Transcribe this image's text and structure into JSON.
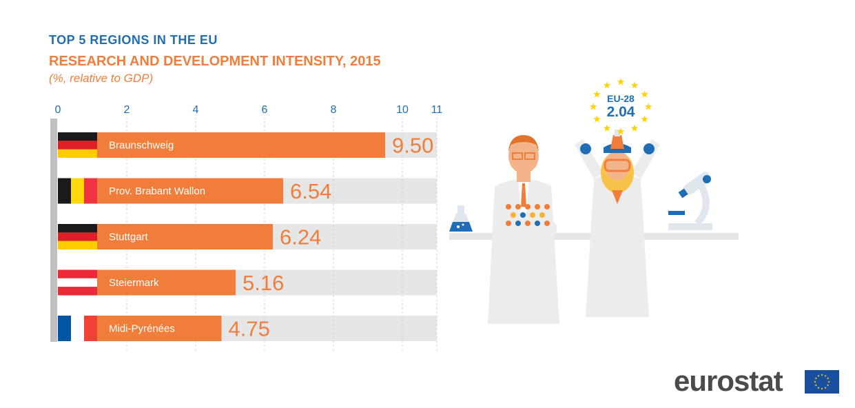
{
  "header": {
    "supertitle": "TOP 5 REGIONS IN THE EU",
    "title": "RESEARCH AND DEVELOPMENT INTENSITY, 2015",
    "subtitle": "(%, relative to GDP)"
  },
  "chart_data": {
    "type": "bar",
    "orientation": "horizontal",
    "categories": [
      "Braunschweig",
      "Prov. Brabant Wallon",
      "Stuttgart",
      "Steiermark",
      "Midi-Pyrénées"
    ],
    "values": [
      9.5,
      6.54,
      6.24,
      5.16,
      4.75
    ],
    "value_labels": [
      "9.50",
      "6.54",
      "6.24",
      "5.16",
      "4.75"
    ],
    "flags": [
      "germany",
      "belgium",
      "germany",
      "austria",
      "france"
    ],
    "x_ticks": [
      "0",
      "2",
      "4",
      "6",
      "8",
      "10",
      "11"
    ],
    "xlim": [
      0,
      11
    ],
    "tick_values": [
      0,
      2,
      4,
      6,
      8,
      10,
      11
    ],
    "grid": true,
    "colors": {
      "bar": "#f07e3a",
      "track": "#e6e6e6",
      "value_text": "#f07e3a",
      "tick_text": "#1f6db4"
    }
  },
  "reference": {
    "label": "EU-28",
    "value": "2.04"
  },
  "footer": {
    "brand": "eurostat"
  }
}
